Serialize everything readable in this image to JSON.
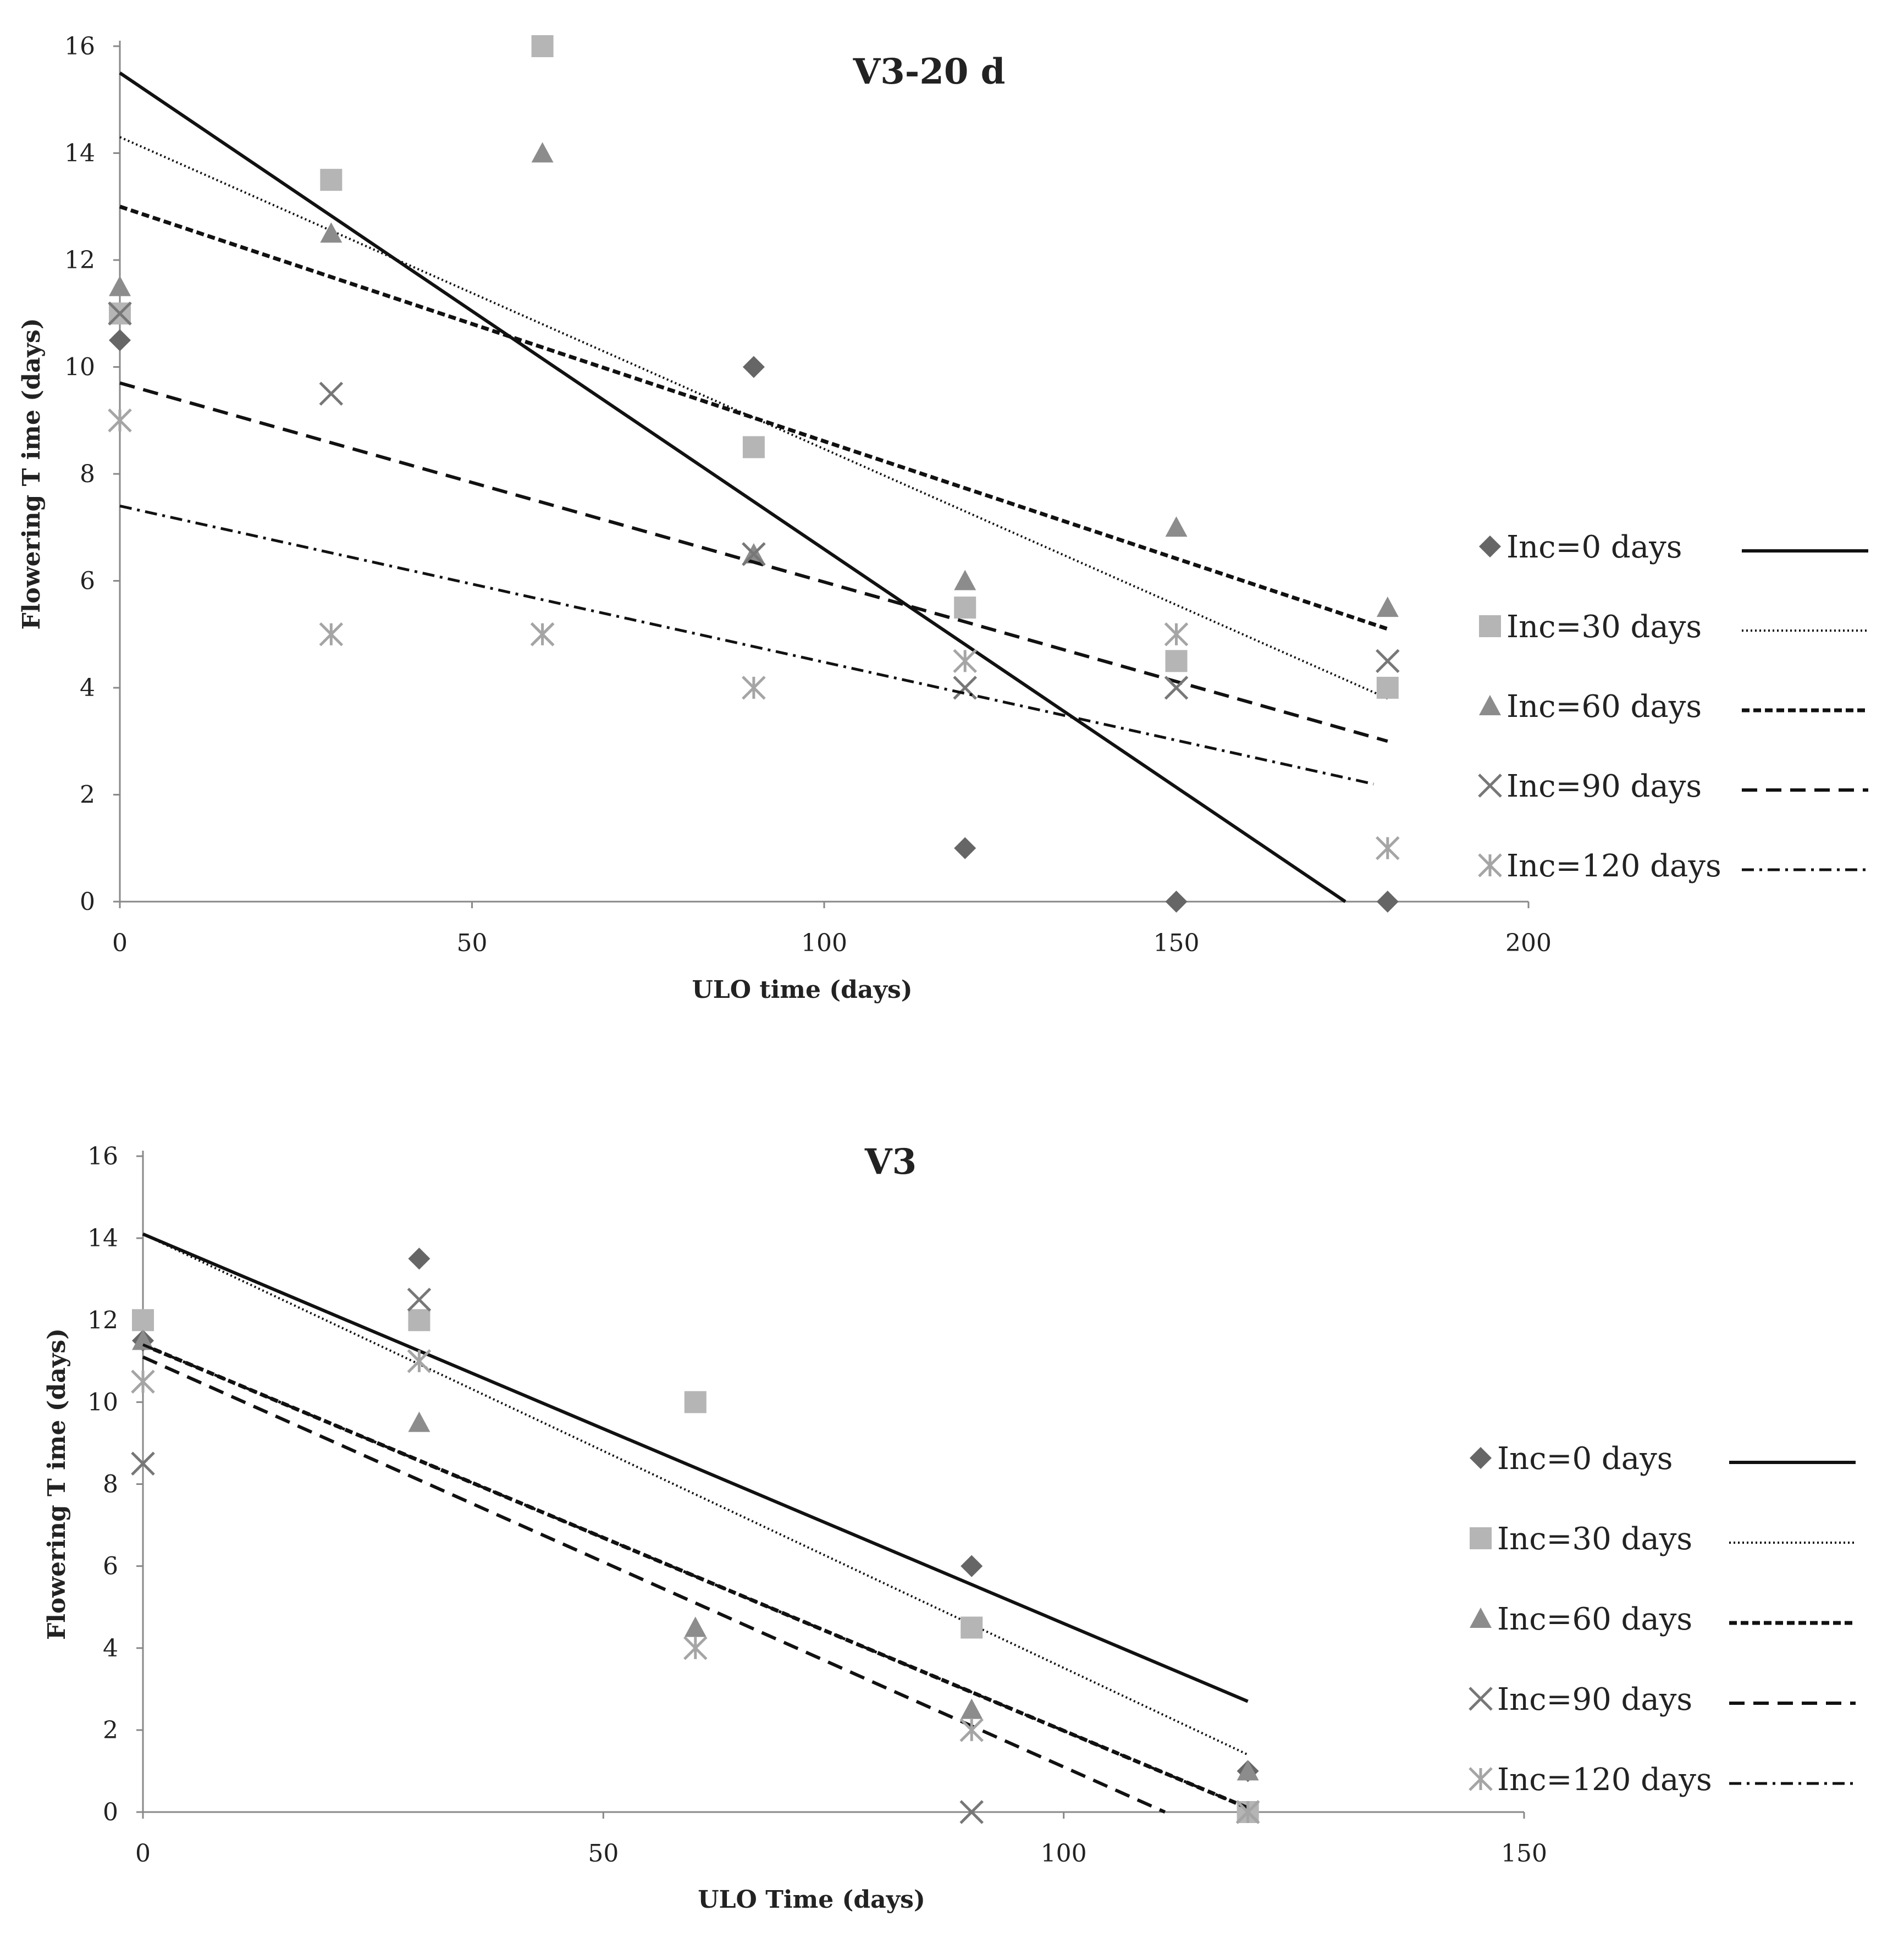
{
  "chart_data": [
    {
      "type": "scatter",
      "title": "V3-20 d",
      "xlabel": "ULO time (days)",
      "ylabel": "Flowering T ime (days)",
      "xlim": [
        0,
        200
      ],
      "ylim": [
        0,
        16
      ],
      "xticks": [
        0,
        50,
        100,
        150,
        200
      ],
      "yticks": [
        0,
        2,
        4,
        6,
        8,
        10,
        12,
        14,
        16
      ],
      "legend_position": "right",
      "series": [
        {
          "name": "Inc=0 days",
          "marker": "diamond",
          "color": "#666666",
          "line_style": "solid",
          "x": [
            0,
            90,
            120,
            150,
            180
          ],
          "y": [
            10.5,
            10,
            1,
            0,
            0
          ],
          "trend": [
            [
              0,
              15.5
            ],
            [
              174,
              0
            ]
          ]
        },
        {
          "name": "Inc=30 days",
          "marker": "square",
          "color": "#b5b5b5",
          "line_style": "dotted",
          "x": [
            0,
            30,
            60,
            90,
            120,
            150,
            180
          ],
          "y": [
            11,
            13.5,
            16,
            8.5,
            5.5,
            4.5,
            4
          ],
          "trend": [
            [
              0,
              14.3
            ],
            [
              180,
              3.8
            ]
          ]
        },
        {
          "name": "Inc=60 days",
          "marker": "triangle",
          "color": "#8c8c8c",
          "line_style": "short-dash",
          "x": [
            0,
            30,
            60,
            90,
            120,
            150,
            180
          ],
          "y": [
            11.5,
            12.5,
            14,
            6.5,
            6,
            7,
            5.5
          ],
          "trend": [
            [
              0,
              13
            ],
            [
              180,
              5.1
            ]
          ]
        },
        {
          "name": "Inc=90 days",
          "marker": "x",
          "color": "#777777",
          "line_style": "dashed",
          "x": [
            0,
            30,
            60,
            90,
            120,
            150,
            180
          ],
          "y": [
            11,
            9.5,
            5,
            6.5,
            4,
            4,
            4.5
          ],
          "trend": [
            [
              0,
              9.7
            ],
            [
              180,
              3
            ]
          ]
        },
        {
          "name": "Inc=120 days",
          "marker": "asterisk",
          "color": "#a5a5a5",
          "line_style": "dash-dot",
          "x": [
            0,
            30,
            60,
            90,
            120,
            150,
            180
          ],
          "y": [
            9,
            5,
            5,
            4,
            4.5,
            5,
            1
          ],
          "trend": [
            [
              0,
              7.4
            ],
            [
              178,
              2.2
            ]
          ]
        }
      ]
    },
    {
      "type": "scatter",
      "title": "V3",
      "xlabel": "ULO Time (days)",
      "ylabel": "Flowering T ime (days)",
      "xlim": [
        0,
        150
      ],
      "ylim": [
        0,
        16
      ],
      "xticks": [
        0,
        50,
        100,
        150
      ],
      "yticks": [
        0,
        2,
        4,
        6,
        8,
        10,
        12,
        14,
        16
      ],
      "legend_position": "right",
      "series": [
        {
          "name": "Inc=0 days",
          "marker": "diamond",
          "color": "#666666",
          "line_style": "solid",
          "x": [
            0,
            30,
            90,
            120
          ],
          "y": [
            11.5,
            13.5,
            6,
            1
          ],
          "trend": [
            [
              0,
              14.1
            ],
            [
              120,
              2.7
            ]
          ]
        },
        {
          "name": "Inc=30 days",
          "marker": "square",
          "color": "#b5b5b5",
          "line_style": "dotted",
          "x": [
            0,
            30,
            60,
            90,
            120
          ],
          "y": [
            12,
            12,
            10,
            4.5,
            0
          ],
          "trend": [
            [
              0,
              14.1
            ],
            [
              120,
              1.4
            ]
          ]
        },
        {
          "name": "Inc=60 days",
          "marker": "triangle",
          "color": "#8c8c8c",
          "line_style": "short-dash",
          "x": [
            0,
            30,
            60,
            90,
            120
          ],
          "y": [
            11.5,
            9.5,
            4.5,
            2.5,
            1
          ],
          "trend": [
            [
              0,
              11.4
            ],
            [
              120,
              0.1
            ]
          ]
        },
        {
          "name": "Inc=90 days",
          "marker": "x",
          "color": "#777777",
          "line_style": "dashed",
          "x": [
            0,
            30,
            90,
            120
          ],
          "y": [
            8.5,
            12.5,
            0,
            0
          ],
          "trend": [
            [
              0,
              11.1
            ],
            [
              111,
              0
            ]
          ]
        },
        {
          "name": "Inc=120 days",
          "marker": "asterisk",
          "color": "#a5a5a5",
          "line_style": "dash-dot",
          "x": [
            0,
            30,
            60,
            90,
            120
          ],
          "y": [
            10.5,
            11,
            4,
            2,
            0
          ],
          "trend": [
            [
              0,
              11.4
            ],
            [
              120,
              0.1
            ]
          ]
        }
      ]
    }
  ]
}
